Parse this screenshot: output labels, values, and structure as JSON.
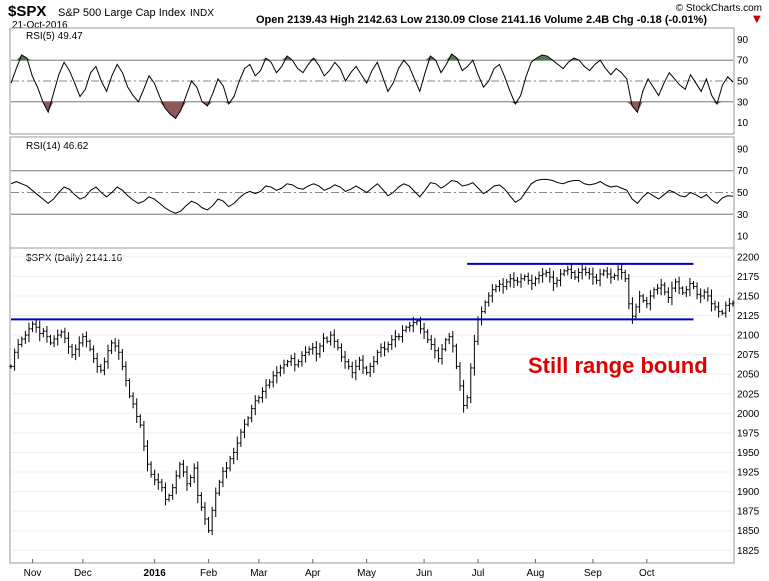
{
  "header": {
    "symbol": "$SPX",
    "name": "S&P 500 Large Cap Index",
    "exchange": "INDX",
    "date": "21-Oct-2016",
    "quote": "Open 2139.43  High 2142.63  Low 2130.09  Close 2141.16  Volume 2.4B  Chg -0.18 (-0.01%)",
    "brand": "© StockCharts.com",
    "down_marker": "▼"
  },
  "annotation": "Still range bound",
  "colors": {
    "overbought_fill": "#4e7d4e",
    "oversold_fill": "#8b5a5a",
    "trendline": "#0000cc",
    "annotation": "#e00000",
    "down": "#cc0000"
  },
  "chart_data": [
    {
      "type": "line",
      "title": "RSI(5) 49.47",
      "indicator": "RSI(5)",
      "last_value": 49.47,
      "ylim": [
        0,
        100
      ],
      "y_ticks": [
        "90",
        "70",
        "50",
        "30",
        "10"
      ],
      "y_tick_values": [
        90,
        70,
        50,
        30,
        10
      ],
      "reference_lines": [
        70,
        50,
        30
      ],
      "fill_above": 70,
      "fill_below": 30,
      "values": [
        48,
        62,
        75,
        72,
        55,
        44,
        30,
        20,
        38,
        56,
        68,
        60,
        48,
        35,
        42,
        58,
        64,
        50,
        40,
        55,
        66,
        58,
        44,
        36,
        30,
        42,
        55,
        48,
        35,
        24,
        18,
        14,
        22,
        36,
        50,
        44,
        30,
        26,
        38,
        52,
        45,
        28,
        35,
        50,
        62,
        66,
        55,
        60,
        72,
        68,
        58,
        64,
        74,
        70,
        62,
        58,
        66,
        72,
        65,
        55,
        60,
        68,
        62,
        50,
        58,
        64,
        56,
        48,
        60,
        68,
        54,
        40,
        48,
        62,
        70,
        64,
        52,
        40,
        58,
        74,
        70,
        58,
        66,
        76,
        72,
        60,
        64,
        70,
        56,
        44,
        50,
        62,
        66,
        54,
        40,
        28,
        36,
        54,
        68,
        72,
        75,
        74,
        70,
        66,
        62,
        68,
        72,
        70,
        64,
        60,
        66,
        70,
        62,
        56,
        62,
        58,
        52,
        26,
        20,
        40,
        52,
        44,
        36,
        48,
        58,
        52,
        46,
        42,
        56,
        48,
        40,
        52,
        36,
        28,
        46,
        54,
        49
      ]
    },
    {
      "type": "line",
      "title": "RSI(14) 46.62",
      "indicator": "RSI(14)",
      "last_value": 46.62,
      "ylim": [
        0,
        100
      ],
      "y_ticks": [
        "90",
        "70",
        "50",
        "30",
        "10"
      ],
      "y_tick_values": [
        90,
        70,
        50,
        30,
        10
      ],
      "reference_lines": [
        70,
        50,
        30
      ],
      "values": [
        58,
        60,
        58,
        56,
        52,
        48,
        44,
        40,
        44,
        50,
        55,
        53,
        48,
        44,
        46,
        52,
        55,
        50,
        46,
        50,
        55,
        52,
        47,
        43,
        40,
        42,
        46,
        44,
        40,
        36,
        33,
        31,
        33,
        38,
        42,
        40,
        36,
        34,
        38,
        44,
        42,
        37,
        40,
        45,
        49,
        51,
        49,
        51,
        56,
        55,
        52,
        54,
        58,
        57,
        54,
        53,
        56,
        58,
        56,
        52,
        54,
        57,
        55,
        51,
        53,
        56,
        53,
        50,
        54,
        58,
        53,
        47,
        50,
        55,
        58,
        56,
        51,
        46,
        52,
        59,
        58,
        54,
        57,
        61,
        60,
        56,
        57,
        59,
        54,
        49,
        52,
        56,
        57,
        53,
        47,
        41,
        44,
        51,
        58,
        61,
        62,
        62,
        61,
        59,
        58,
        60,
        61,
        61,
        58,
        57,
        58,
        60,
        57,
        55,
        56,
        54,
        52,
        44,
        40,
        46,
        50,
        47,
        44,
        48,
        52,
        50,
        47,
        46,
        50,
        48,
        45,
        48,
        43,
        40,
        45,
        47,
        46.6
      ]
    },
    {
      "type": "bar",
      "style": "ohlc",
      "title": "$SPX (Daily) 2141.16",
      "ylim": [
        1810,
        2210
      ],
      "y_ticks": [
        "2200",
        "2175",
        "2150",
        "2125",
        "2100",
        "2075",
        "2050",
        "2025",
        "2000",
        "1975",
        "1950",
        "1925",
        "1900",
        "1875",
        "1850",
        "1825"
      ],
      "y_tick_values": [
        2200,
        2175,
        2150,
        2125,
        2100,
        2075,
        2050,
        2025,
        2000,
        1975,
        1950,
        1925,
        1900,
        1875,
        1850,
        1825
      ],
      "x_ticks": [
        "Nov",
        "Dec",
        "2016",
        "Feb",
        "Mar",
        "Apr",
        "May",
        "Jun",
        "Jul",
        "Aug",
        "Sep",
        "Oct"
      ],
      "x_tick_index": [
        6,
        20,
        40,
        55,
        69,
        84,
        99,
        115,
        130,
        146,
        162,
        177
      ],
      "horizontal_lines": [
        {
          "price": 2120,
          "from_index": 0,
          "to_index": 190
        },
        {
          "price": 2191,
          "from_index": 127,
          "to_index": 190
        }
      ],
      "close": [
        2060,
        2078,
        2088,
        2095,
        2100,
        2108,
        2114,
        2110,
        2102,
        2105,
        2098,
        2090,
        2095,
        2100,
        2104,
        2096,
        2085,
        2075,
        2082,
        2090,
        2098,
        2092,
        2082,
        2070,
        2060,
        2055,
        2066,
        2080,
        2090,
        2086,
        2078,
        2060,
        2042,
        2022,
        2012,
        1996,
        1985,
        1958,
        1935,
        1922,
        1915,
        1912,
        1905,
        1890,
        1895,
        1905,
        1920,
        1935,
        1925,
        1910,
        1918,
        1930,
        1895,
        1880,
        1865,
        1850,
        1876,
        1898,
        1912,
        1926,
        1930,
        1942,
        1950,
        1962,
        1976,
        1986,
        1994,
        2006,
        2016,
        2020,
        2028,
        2036,
        2040,
        2048,
        2052,
        2058,
        2062,
        2066,
        2070,
        2062,
        2066,
        2074,
        2078,
        2082,
        2084,
        2076,
        2086,
        2096,
        2092,
        2100,
        2092,
        2084,
        2072,
        2066,
        2060,
        2052,
        2060,
        2068,
        2058,
        2052,
        2060,
        2066,
        2078,
        2084,
        2082,
        2088,
        2094,
        2098,
        2098,
        2106,
        2110,
        2112,
        2116,
        2118,
        2108,
        2104,
        2094,
        2088,
        2080,
        2070,
        2082,
        2094,
        2098,
        2086,
        2060,
        2035,
        2010,
        2020,
        2058,
        2092,
        2120,
        2130,
        2142,
        2150,
        2158,
        2162,
        2165,
        2162,
        2168,
        2172,
        2170,
        2168,
        2172,
        2175,
        2170,
        2166,
        2172,
        2176,
        2178,
        2180,
        2174,
        2166,
        2170,
        2178,
        2182,
        2184,
        2180,
        2174,
        2180,
        2184,
        2180,
        2178,
        2174,
        2170,
        2178,
        2182,
        2178,
        2174,
        2176,
        2184,
        2180,
        2172,
        2140,
        2124,
        2136,
        2150,
        2144,
        2140,
        2150,
        2158,
        2160,
        2164,
        2155,
        2148,
        2160,
        2168,
        2160,
        2154,
        2158,
        2166,
        2162,
        2152,
        2150,
        2155,
        2150,
        2140,
        2136,
        2130,
        2128,
        2138,
        2140,
        2141.16
      ]
    }
  ]
}
